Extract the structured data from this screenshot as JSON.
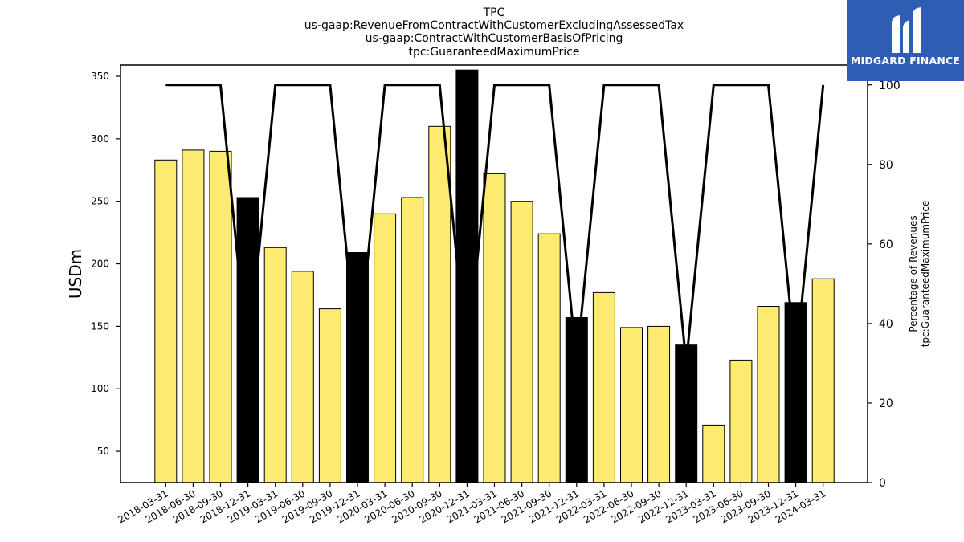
{
  "chart_data": {
    "type": "bar",
    "title": "TPC",
    "subtitle_lines": [
      "us-gaap:RevenueFromContractWithCustomerExcludingAssessedTax",
      "us-gaap:ContractWithCustomerBasisOfPricing",
      "tpc:GuaranteedMaximumPrice"
    ],
    "ylabel": "USDm",
    "ylabel_right": [
      "Percentage of Revenues",
      "tpc:GuaranteedMaximumPrice"
    ],
    "ylim": [
      25,
      359
    ],
    "ylim_right": [
      0,
      105
    ],
    "yticks": [
      50,
      100,
      150,
      200,
      250,
      300,
      350
    ],
    "yticks_right": [
      0,
      20,
      40,
      60,
      80,
      100
    ],
    "categories": [
      "2018-03-31",
      "2018-06-30",
      "2018-09-30",
      "2018-12-31",
      "2019-03-31",
      "2019-06-30",
      "2019-09-30",
      "2019-12-31",
      "2020-03-31",
      "2020-06-30",
      "2020-09-30",
      "2020-12-31",
      "2021-03-31",
      "2021-06-30",
      "2021-09-30",
      "2021-12-31",
      "2022-03-31",
      "2022-06-30",
      "2022-09-30",
      "2022-12-31",
      "2023-03-31",
      "2023-06-30",
      "2023-09-30",
      "2023-12-31",
      "2024-03-31"
    ],
    "series": [
      {
        "kind": "bar",
        "values": [
          283,
          291,
          290,
          253,
          213,
          194,
          164,
          209,
          240,
          253,
          310,
          355,
          272,
          250,
          224,
          157,
          177,
          149,
          150,
          135,
          71,
          123,
          166,
          169,
          188
        ],
        "year_end": [
          false,
          false,
          false,
          true,
          false,
          false,
          false,
          true,
          false,
          false,
          false,
          true,
          false,
          false,
          false,
          true,
          false,
          false,
          false,
          true,
          false,
          false,
          false,
          true,
          false
        ]
      },
      {
        "kind": "line",
        "axis": "right",
        "values": [
          100,
          100,
          100,
          30,
          100,
          100,
          100,
          30,
          100,
          100,
          100,
          30,
          100,
          100,
          100,
          30,
          100,
          100,
          100,
          30,
          100,
          100,
          100,
          30,
          100
        ]
      }
    ],
    "colors": {
      "bar": "#fdeb71",
      "bar_year_end": "#000000",
      "bar_edge": "#000000",
      "line": "#000000"
    },
    "grid": false
  },
  "logo": {
    "text": "MIDGARD FINANCE",
    "background": "#2f5db3"
  }
}
